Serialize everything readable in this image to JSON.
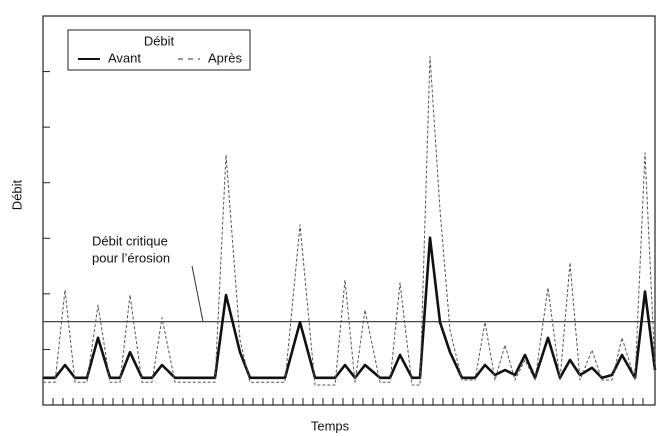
{
  "chart_data": {
    "type": "line",
    "x_label": "Temps",
    "y_label": "Débit",
    "legend_title": "Débit",
    "legend": "upper left",
    "xlim": [
      0,
      61.2
    ],
    "xticks": [
      1,
      2,
      3,
      4,
      5,
      6,
      7,
      8,
      9,
      10,
      11,
      12,
      13,
      14,
      15,
      16,
      17,
      18,
      19,
      20,
      21,
      22,
      23,
      24,
      25,
      26,
      27,
      28,
      29,
      30,
      31,
      32,
      33,
      34,
      35,
      36,
      37,
      38,
      39,
      40,
      41,
      42,
      43,
      44,
      45,
      46,
      47,
      48,
      49,
      50,
      51,
      52,
      53,
      54,
      55,
      56,
      57,
      58,
      59,
      60
    ],
    "ylim": [
      0,
      7
    ],
    "yticks": [
      1,
      2,
      3,
      4,
      5,
      6
    ],
    "x": [
      0,
      1.2,
      2.2,
      3.2,
      4.4,
      5.5,
      6.7,
      7.7,
      8.7,
      9.9,
      10.9,
      11.9,
      13.2,
      17.2,
      18.3,
      19.7,
      20.7,
      24.2,
      25.7,
      27.2,
      29.2,
      30.2,
      31.2,
      32.2,
      33.7,
      34.7,
      35.7,
      36.9,
      37.7,
      38.7,
      39.7,
      40.7,
      41.9,
      43.2,
      44.2,
      45.2,
      46.2,
      47.2,
      48.2,
      49.2,
      50.5,
      51.7,
      52.7,
      53.7,
      54.9,
      55.9,
      56.9,
      57.9,
      59.2,
      60.2,
      61.2
    ],
    "series": [
      {
        "name": "Avant",
        "color": "#111111",
        "style": "solid",
        "values": [
          0.49,
          0.49,
          0.72,
          0.49,
          0.49,
          1.21,
          0.49,
          0.49,
          0.95,
          0.49,
          0.49,
          0.72,
          0.49,
          0.49,
          1.98,
          0.95,
          0.49,
          0.49,
          1.49,
          0.49,
          0.49,
          0.72,
          0.49,
          0.72,
          0.49,
          0.49,
          0.9,
          0.49,
          0.49,
          3.01,
          1.49,
          0.95,
          0.49,
          0.49,
          0.72,
          0.54,
          0.63,
          0.54,
          0.9,
          0.49,
          1.21,
          0.49,
          0.81,
          0.54,
          0.67,
          0.49,
          0.54,
          0.9,
          0.49,
          2.04,
          0.63
        ]
      },
      {
        "name": "Après",
        "color": "#555555",
        "style": "dashed",
        "values": [
          0.41,
          0.41,
          2.07,
          0.41,
          0.41,
          1.8,
          0.41,
          0.41,
          1.98,
          0.41,
          0.41,
          1.57,
          0.41,
          0.41,
          4.5,
          1.17,
          0.41,
          0.41,
          3.24,
          0.36,
          0.36,
          2.25,
          0.41,
          1.71,
          0.41,
          0.41,
          2.2,
          0.36,
          0.36,
          6.27,
          3.51,
          1.35,
          0.45,
          0.45,
          1.49,
          0.45,
          1.08,
          0.45,
          0.81,
          0.45,
          2.11,
          0.45,
          2.56,
          0.45,
          0.99,
          0.45,
          0.45,
          1.21,
          0.45,
          4.54,
          0.63
        ]
      }
    ],
    "threshold": {
      "value": 1.5,
      "color": "#444444",
      "text": [
        "Débit critique",
        "pour l’érosion"
      ]
    }
  }
}
